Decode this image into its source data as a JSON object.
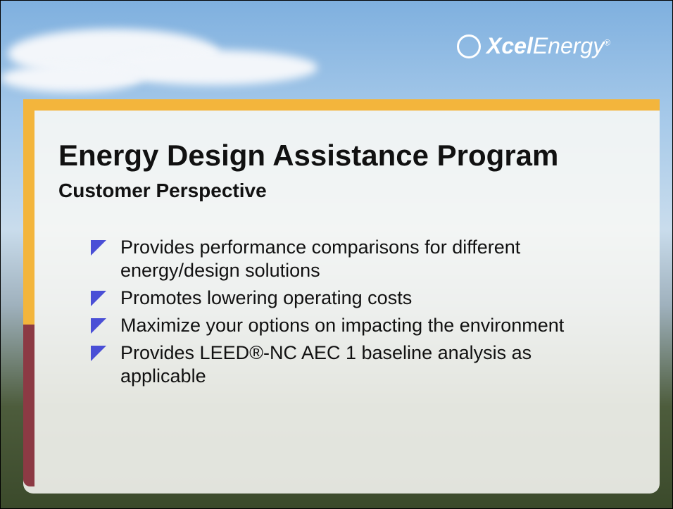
{
  "logo": {
    "brand_bold": "Xcel",
    "brand_rest": "Energy",
    "mark": "®"
  },
  "slide": {
    "title": "Energy Design Assistance Program",
    "subtitle": "Customer Perspective",
    "bullets": [
      "Provides performance comparisons for different energy/design solutions",
      "Promotes lowering operating costs",
      "Maximize your options on impacting the environment",
      "Provides LEED®-NC AEC 1 baseline analysis as applicable"
    ]
  }
}
